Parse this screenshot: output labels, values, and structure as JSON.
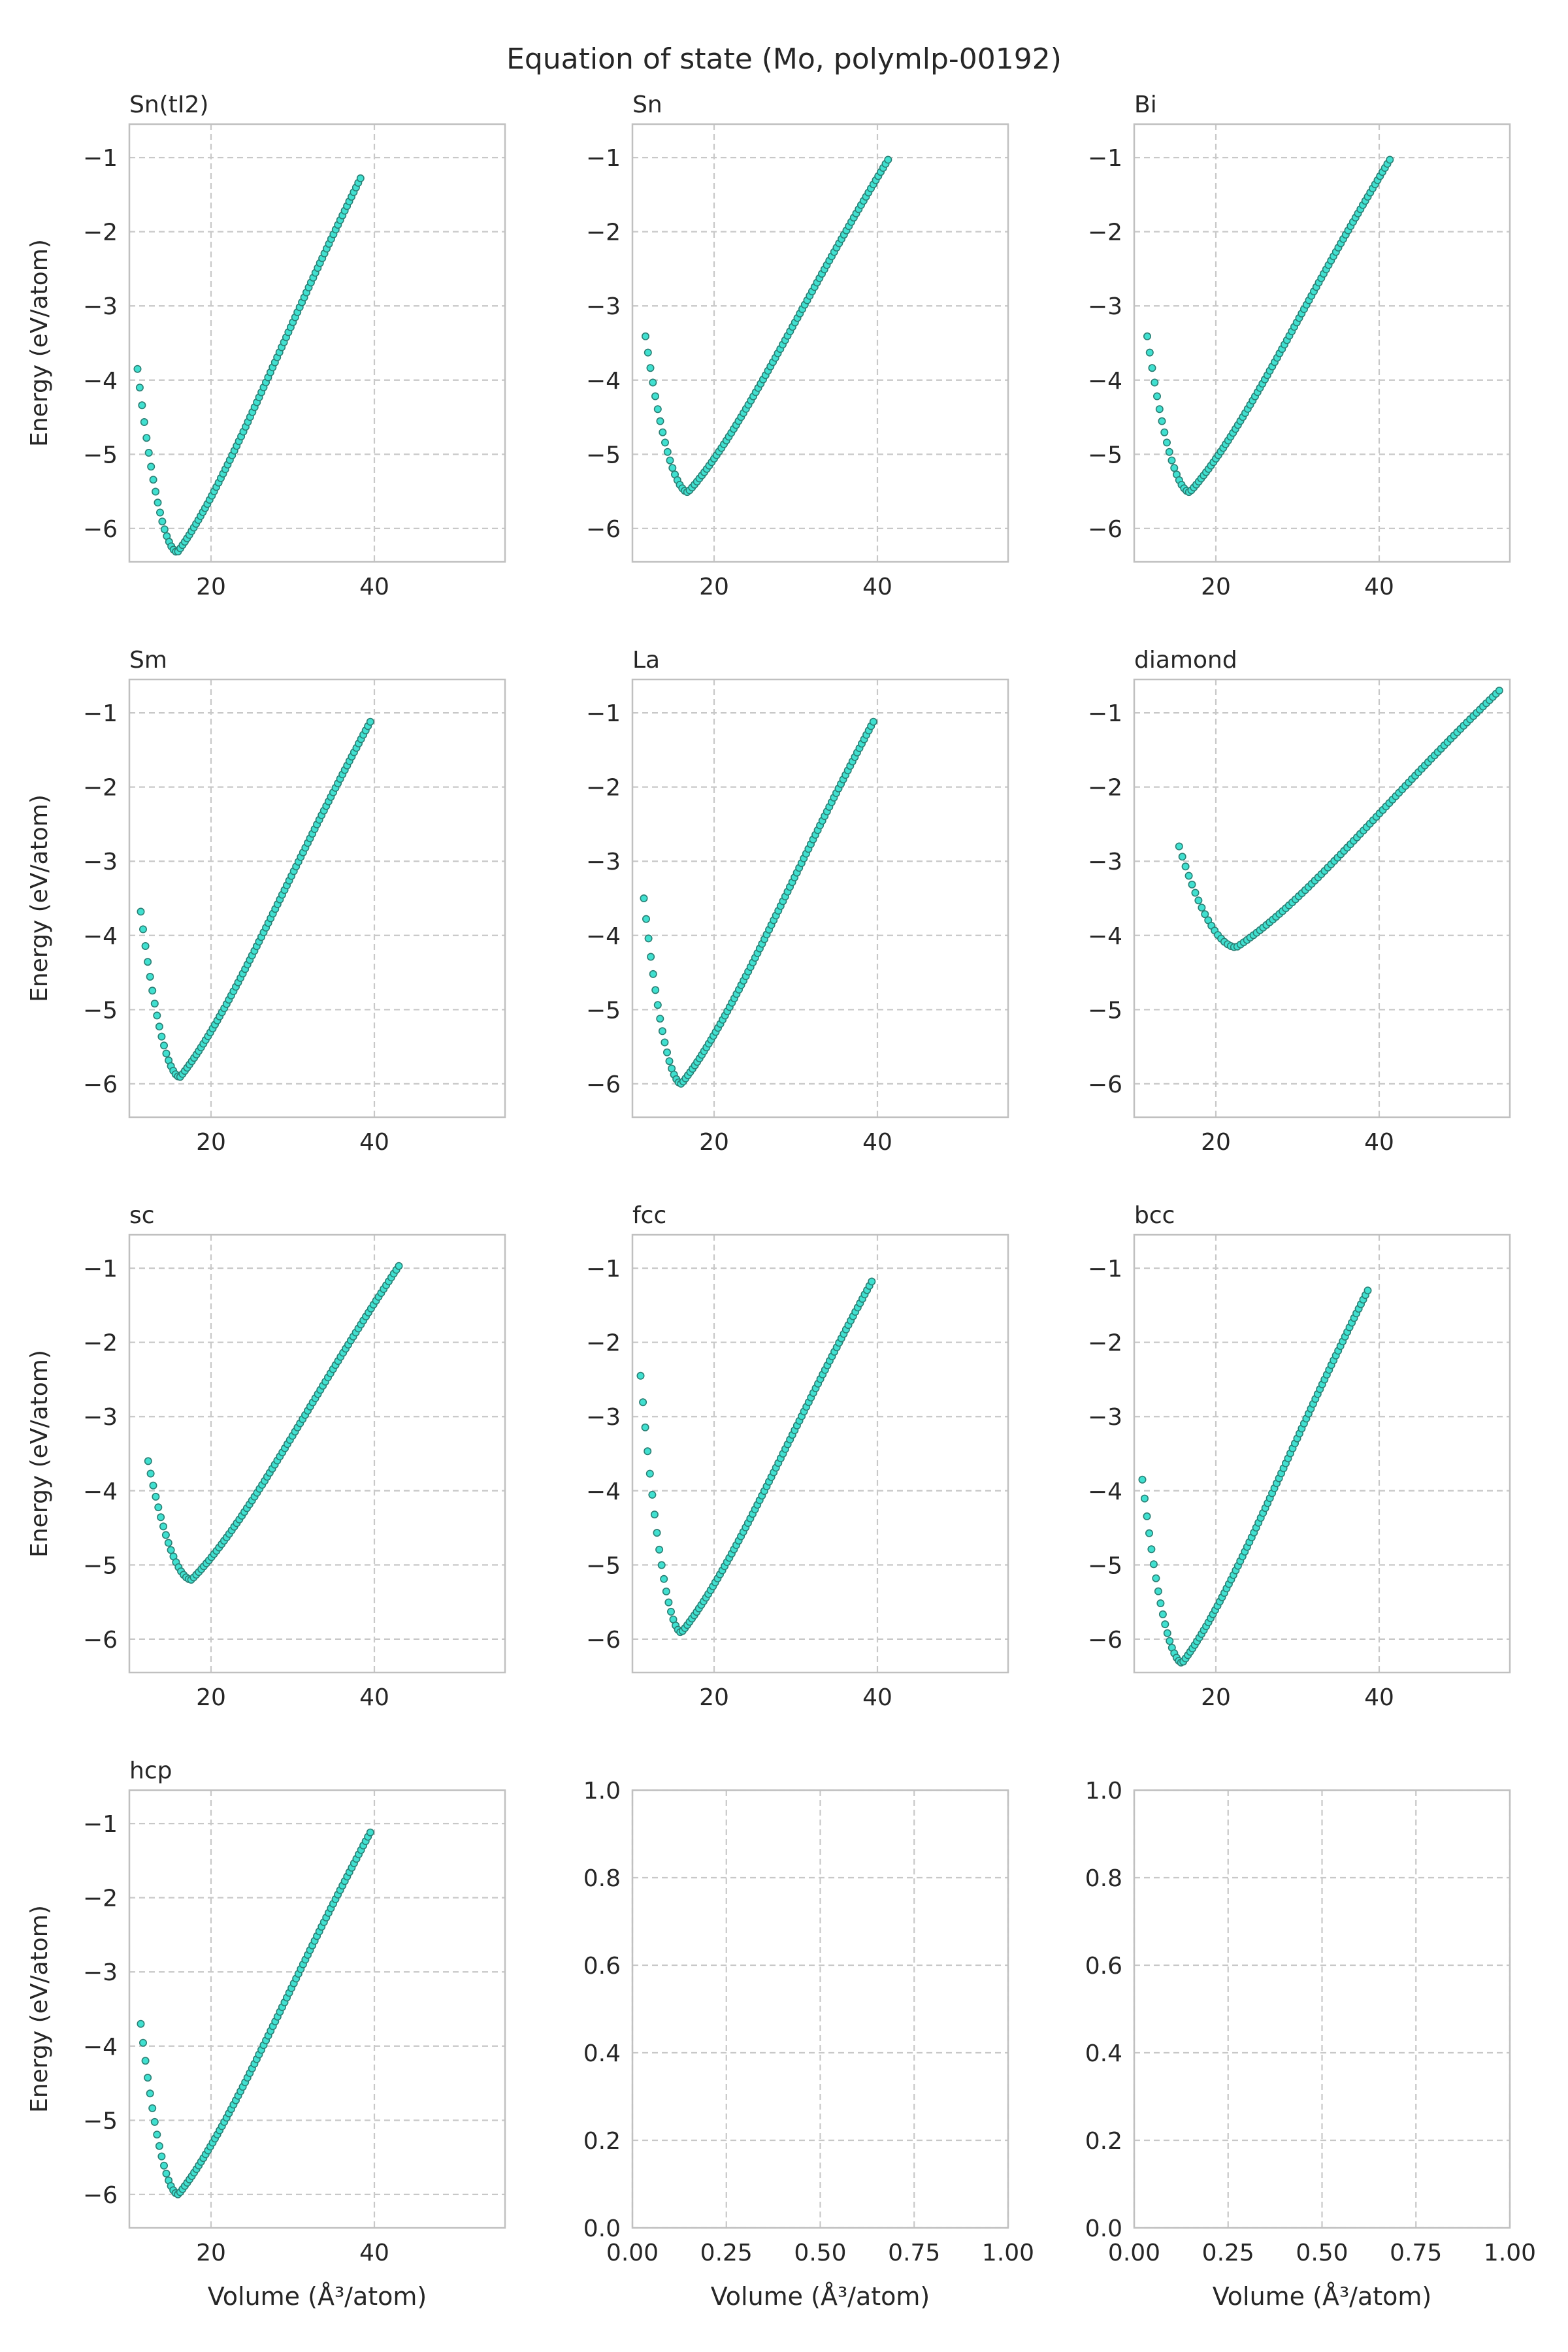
{
  "figure": {
    "title": "Equation of state (Mo, polymlp-00192)",
    "xlabel": "Volume (Å³/atom)",
    "ylabel": "Energy (eV/atom)"
  },
  "colors": {
    "marker_fill": "#40E0D0",
    "marker_edge": "#2a7f74",
    "grid": "#c8c8c8",
    "spine": "#c0c0c0",
    "text": "#262626"
  },
  "chart_data": [
    {
      "type": "scatter",
      "title": "Sn(tI2)",
      "xlabel": "",
      "ylabel": "Energy (eV/atom)",
      "xlim": [
        10,
        56
      ],
      "ylim": [
        -6.45,
        -0.55
      ],
      "xticks": [
        20,
        40
      ],
      "yticks": [
        -6,
        -5,
        -4,
        -3,
        -2,
        -1
      ],
      "grid": true,
      "curve": {
        "v_start": 11.0,
        "v_end": 38.3,
        "v_min": 15.9,
        "e_min": -6.32,
        "e_start": -3.85,
        "e_end": -1.28,
        "count": 100
      }
    },
    {
      "type": "scatter",
      "title": "Sn",
      "xlabel": "",
      "ylabel": "",
      "xlim": [
        10,
        56
      ],
      "ylim": [
        -6.45,
        -0.55
      ],
      "xticks": [
        20,
        40
      ],
      "yticks": [
        -6,
        -5,
        -4,
        -3,
        -2,
        -1
      ],
      "grid": true,
      "curve": {
        "v_start": 11.6,
        "v_end": 41.3,
        "v_min": 16.8,
        "e_min": -5.51,
        "e_start": -3.41,
        "e_end": -1.03,
        "count": 100
      }
    },
    {
      "type": "scatter",
      "title": "Bi",
      "xlabel": "",
      "ylabel": "",
      "xlim": [
        10,
        56
      ],
      "ylim": [
        -6.45,
        -0.55
      ],
      "xticks": [
        20,
        40
      ],
      "yticks": [
        -6,
        -5,
        -4,
        -3,
        -2,
        -1
      ],
      "grid": true,
      "curve": {
        "v_start": 11.6,
        "v_end": 41.3,
        "v_min": 16.8,
        "e_min": -5.51,
        "e_start": -3.41,
        "e_end": -1.03,
        "count": 100
      }
    },
    {
      "type": "scatter",
      "title": "Sm",
      "xlabel": "",
      "ylabel": "Energy (eV/atom)",
      "xlim": [
        10,
        56
      ],
      "ylim": [
        -6.45,
        -0.55
      ],
      "xticks": [
        20,
        40
      ],
      "yticks": [
        -6,
        -5,
        -4,
        -3,
        -2,
        -1
      ],
      "grid": true,
      "curve": {
        "v_start": 11.4,
        "v_end": 39.5,
        "v_min": 16.2,
        "e_min": -5.91,
        "e_start": -3.68,
        "e_end": -1.12,
        "count": 100
      }
    },
    {
      "type": "scatter",
      "title": "La",
      "xlabel": "",
      "ylabel": "",
      "xlim": [
        10,
        56
      ],
      "ylim": [
        -6.45,
        -0.55
      ],
      "xticks": [
        20,
        40
      ],
      "yticks": [
        -6,
        -5,
        -4,
        -3,
        -2,
        -1
      ],
      "grid": true,
      "curve": {
        "v_start": 11.4,
        "v_end": 39.5,
        "v_min": 16.0,
        "e_min": -6.0,
        "e_start": -3.5,
        "e_end": -1.12,
        "count": 100
      }
    },
    {
      "type": "scatter",
      "title": "diamond",
      "xlabel": "",
      "ylabel": "",
      "xlim": [
        10,
        56
      ],
      "ylim": [
        -6.45,
        -0.55
      ],
      "xticks": [
        20,
        40
      ],
      "yticks": [
        -6,
        -5,
        -4,
        -3,
        -2,
        -1
      ],
      "grid": true,
      "curve": {
        "v_start": 15.5,
        "v_end": 54.7,
        "v_min": 22.5,
        "e_min": -4.16,
        "e_start": -2.8,
        "e_end": -0.7,
        "count": 100
      }
    },
    {
      "type": "scatter",
      "title": "sc",
      "xlabel": "",
      "ylabel": "Energy (eV/atom)",
      "xlim": [
        10,
        56
      ],
      "ylim": [
        -6.45,
        -0.55
      ],
      "xticks": [
        20,
        40
      ],
      "yticks": [
        -6,
        -5,
        -4,
        -3,
        -2,
        -1
      ],
      "grid": true,
      "curve": {
        "v_start": 12.3,
        "v_end": 43.0,
        "v_min": 17.6,
        "e_min": -5.2,
        "e_start": -3.6,
        "e_end": -0.97,
        "count": 100
      }
    },
    {
      "type": "scatter",
      "title": "fcc",
      "xlabel": "",
      "ylabel": "",
      "xlim": [
        10,
        56
      ],
      "ylim": [
        -6.45,
        -0.55
      ],
      "xticks": [
        20,
        40
      ],
      "yticks": [
        -6,
        -5,
        -4,
        -3,
        -2,
        -1
      ],
      "grid": true,
      "curve": {
        "v_start": 11.0,
        "v_end": 39.3,
        "v_min": 16.0,
        "e_min": -5.91,
        "e_start": -2.45,
        "e_end": -1.18,
        "count": 100
      }
    },
    {
      "type": "scatter",
      "title": "bcc",
      "xlabel": "",
      "ylabel": "",
      "xlim": [
        10,
        56
      ],
      "ylim": [
        -6.45,
        -0.55
      ],
      "xticks": [
        20,
        40
      ],
      "yticks": [
        -6,
        -5,
        -4,
        -3,
        -2,
        -1
      ],
      "grid": true,
      "curve": {
        "v_start": 11.0,
        "v_end": 38.6,
        "v_min": 15.9,
        "e_min": -6.32,
        "e_start": -3.85,
        "e_end": -1.3,
        "count": 100
      }
    },
    {
      "type": "scatter",
      "title": "hcp",
      "xlabel": "Volume (Å³/atom)",
      "ylabel": "Energy (eV/atom)",
      "xlim": [
        10,
        56
      ],
      "ylim": [
        -6.45,
        -0.55
      ],
      "xticks": [
        20,
        40
      ],
      "yticks": [
        -6,
        -5,
        -4,
        -3,
        -2,
        -1
      ],
      "grid": true,
      "curve": {
        "v_start": 11.4,
        "v_end": 39.5,
        "v_min": 16.0,
        "e_min": -6.0,
        "e_start": -3.7,
        "e_end": -1.12,
        "count": 100
      }
    },
    {
      "type": "scatter",
      "title": "",
      "xlabel": "Volume (Å³/atom)",
      "ylabel": "",
      "xlim": [
        0,
        1
      ],
      "ylim": [
        0,
        1
      ],
      "xticks": [
        0.0,
        0.25,
        0.5,
        0.75,
        1.0
      ],
      "yticks": [
        0.0,
        0.2,
        0.4,
        0.6,
        0.8,
        1.0
      ],
      "grid": true,
      "empty": true
    },
    {
      "type": "scatter",
      "title": "",
      "xlabel": "Volume (Å³/atom)",
      "ylabel": "",
      "xlim": [
        0,
        1
      ],
      "ylim": [
        0,
        1
      ],
      "xticks": [
        0.0,
        0.25,
        0.5,
        0.75,
        1.0
      ],
      "yticks": [
        0.0,
        0.2,
        0.4,
        0.6,
        0.8,
        1.0
      ],
      "grid": true,
      "empty": true
    }
  ]
}
